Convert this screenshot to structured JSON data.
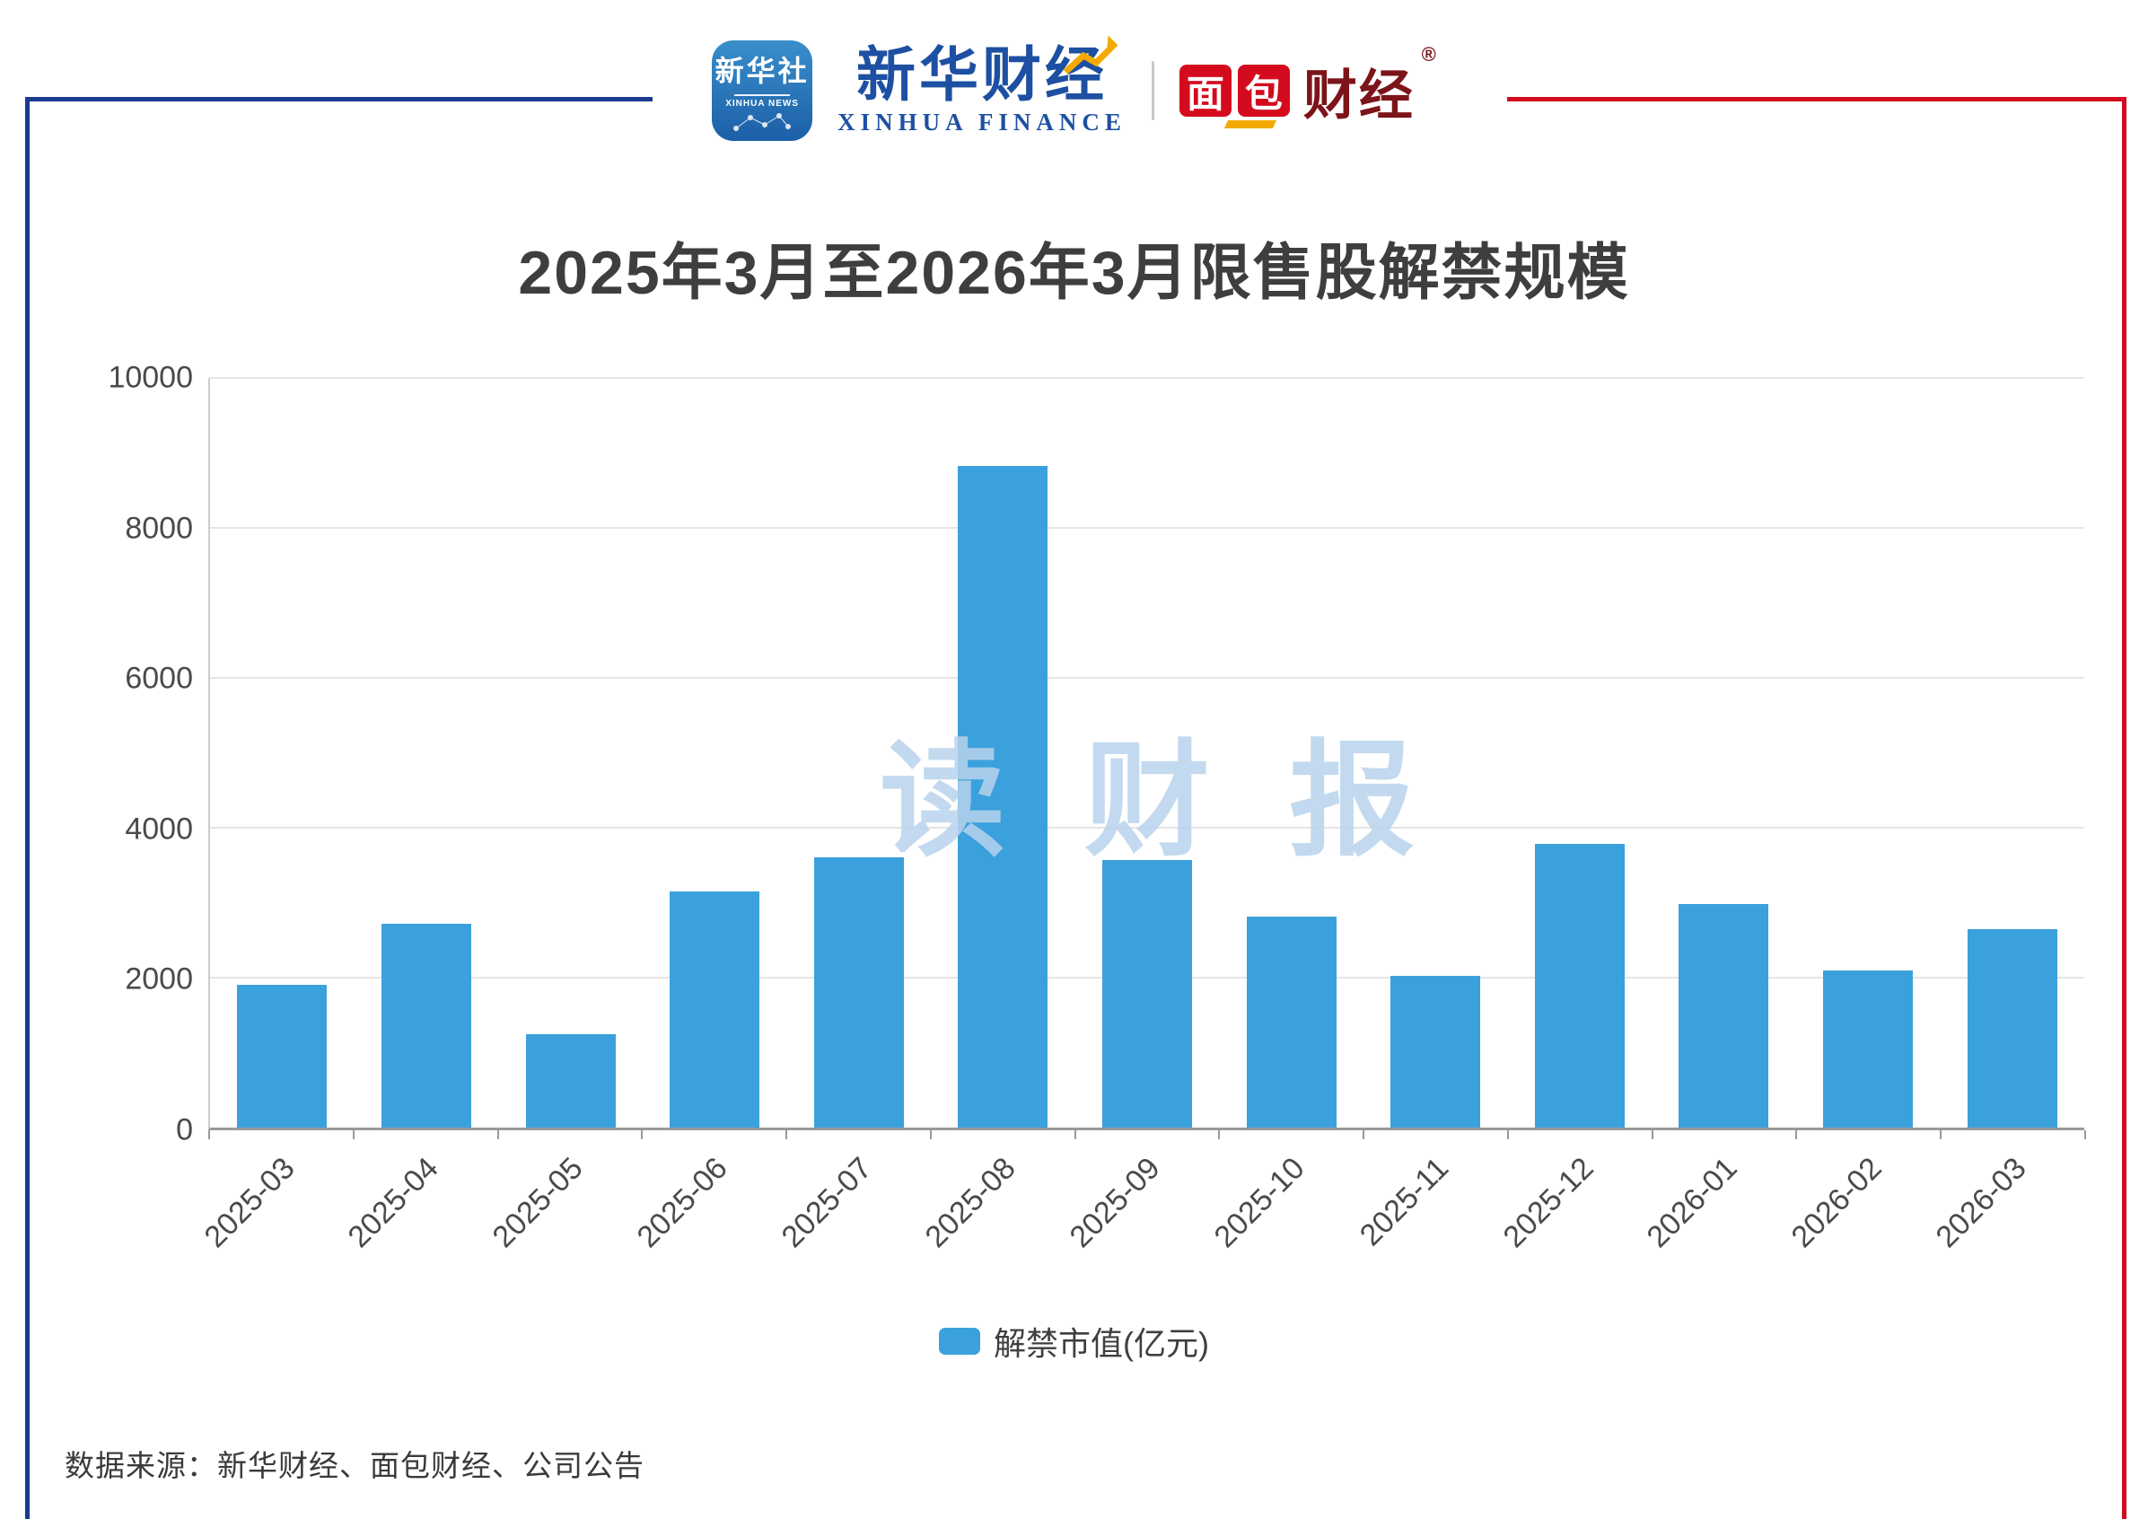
{
  "header": {
    "xinhua_news": {
      "cn": "新华社",
      "en": "XINHUA NEWS"
    },
    "xinhua_finance": {
      "cn": "新华财经",
      "en": "XINHUA FINANCE"
    },
    "bread_finance": {
      "block1": "面",
      "block2": "包",
      "rest": "财经",
      "reg": "®"
    }
  },
  "chart_data": {
    "type": "bar",
    "title": "2025年3月至2026年3月限售股解禁规模",
    "categories": [
      "2025-03",
      "2025-04",
      "2025-05",
      "2025-06",
      "2025-07",
      "2025-08",
      "2025-09",
      "2025-10",
      "2025-11",
      "2025-12",
      "2026-01",
      "2026-02",
      "2026-03"
    ],
    "values": [
      1900,
      2720,
      1250,
      3150,
      3600,
      8830,
      3570,
      2820,
      2020,
      3790,
      2980,
      2100,
      2650
    ],
    "series_name": "解禁市值(亿元)",
    "xlabel": "",
    "ylabel": "",
    "ylim": [
      0,
      10000
    ],
    "yticks": [
      0,
      2000,
      4000,
      6000,
      8000,
      10000
    ],
    "bar_color": "#3BA1DC",
    "grid": true,
    "legend_position": "bottom"
  },
  "watermark": "读财报",
  "footer": {
    "source": "数据来源：新华财经、面包财经、公司公告"
  },
  "colors": {
    "frame_blue": "#1A3C8F",
    "frame_red": "#D40B1E",
    "xinhua_blue": "#1D50A2",
    "bread_red": "#D40B1E",
    "bread_dark_red": "#7C1419",
    "gold": "#F2A900",
    "bar_blue": "#3BA1DC"
  }
}
